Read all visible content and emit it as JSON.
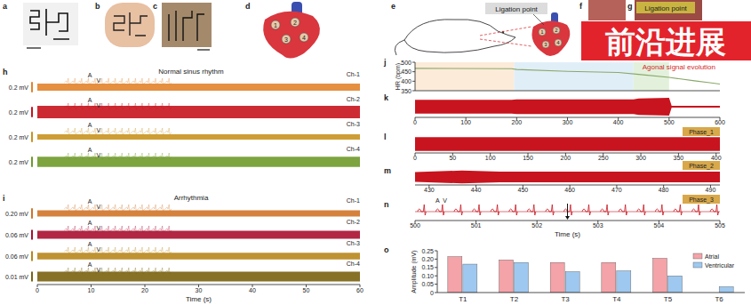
{
  "badge": "前沿进展",
  "illustrations": [
    {
      "panel": "a"
    },
    {
      "panel": "b"
    },
    {
      "panel": "c"
    },
    {
      "panel": "d",
      "electrodes": [
        "1",
        "2",
        "3",
        "4"
      ]
    },
    {
      "panel": "e",
      "annotation": "Ligation point",
      "electrodes": [
        "1",
        "2",
        "3",
        "4"
      ]
    },
    {
      "panel": "f"
    },
    {
      "panel": "g",
      "annotation": "Ligation point"
    }
  ],
  "chart_data": [
    {
      "panel": "h",
      "type": "trace_stack",
      "title": "Normal sinus rhythm",
      "xlim": [
        0,
        60
      ],
      "inset": {
        "x": [
          5,
          25
        ],
        "labels": [
          "A",
          "V"
        ]
      },
      "series": [
        {
          "name": "Ch-1",
          "color": "#e2832c",
          "ylim": [
            -0.19,
            0.19
          ],
          "scale_bar": {
            "value": 0.2,
            "label": "0.2 mV"
          },
          "x": [
            0,
            60
          ],
          "values": [
            0.07,
            0.07
          ]
        },
        {
          "name": "Ch-2",
          "color": "#c8141e",
          "ylim": [
            -0.19,
            0.19
          ],
          "scale_bar": {
            "value": 0.2,
            "label": "0.2 mV"
          },
          "x": [
            0,
            60
          ],
          "values": [
            0.12,
            0.12
          ]
        },
        {
          "name": "Ch-3",
          "color": "#c9931f",
          "ylim": [
            -0.19,
            0.19
          ],
          "scale_bar": {
            "value": 0.2,
            "label": "0.2 mV"
          },
          "x": [
            0,
            60
          ],
          "values": [
            0.05,
            0.05
          ]
        },
        {
          "name": "Ch-4",
          "color": "#6f9a2a",
          "ylim": [
            -0.19,
            0.19
          ],
          "scale_bar": {
            "value": 0.2,
            "label": "0.2 mV"
          },
          "x": [
            0,
            60
          ],
          "values": [
            0.1,
            0.1
          ]
        }
      ]
    },
    {
      "panel": "i",
      "type": "trace_stack",
      "title": "Arrhythmia",
      "xlim": [
        0,
        60
      ],
      "xticks": [
        0,
        10,
        20,
        30,
        40,
        50,
        60
      ],
      "xlabel": "Time (s)",
      "inset": {
        "x": [
          5,
          25
        ],
        "labels": [
          "A",
          "V"
        ]
      },
      "series": [
        {
          "name": "Ch-1",
          "color": "#d07428",
          "ylim": [
            -0.19,
            0.19
          ],
          "scale_bar": {
            "value": 0.2,
            "label": "0.20 mV"
          },
          "x": [
            0,
            60
          ],
          "values": [
            0.06,
            0.06
          ]
        },
        {
          "name": "Ch-2",
          "color": "#a81030",
          "ylim": [
            -0.06,
            0.06
          ],
          "scale_bar": {
            "value": 0.06,
            "label": "0.06 mV"
          },
          "x": [
            0,
            60
          ],
          "values": [
            0.025,
            0.025
          ]
        },
        {
          "name": "Ch-3",
          "color": "#b8861c",
          "ylim": [
            -0.06,
            0.06
          ],
          "scale_bar": {
            "value": 0.06,
            "label": "0.06 mV"
          },
          "x": [
            0,
            60
          ],
          "values": [
            0.02,
            0.02
          ]
        },
        {
          "name": "Ch-4",
          "color": "#7a6210",
          "ylim": [
            -0.01,
            0.01
          ],
          "scale_bar": {
            "value": 0.01,
            "label": "0.01 mV"
          },
          "x": [
            0,
            60
          ],
          "values": [
            0.005,
            0.005
          ]
        }
      ]
    },
    {
      "panel": "j",
      "type": "line",
      "ylabel": "HR (bpm)",
      "annotation": "Agonal signal evolution",
      "xlim": [
        0,
        600
      ],
      "ylim": [
        350,
        500
      ],
      "yticks": [
        350,
        400,
        450,
        500
      ],
      "color": "#8aa86a",
      "phases": [
        {
          "x": [
            0,
            195
          ],
          "color": "#fcebd9"
        },
        {
          "x": [
            195,
            430
          ],
          "color": "#e0eef8"
        },
        {
          "x": [
            430,
            500
          ],
          "color": "#e3f1dc"
        }
      ],
      "x": [
        0,
        190,
        200,
        300,
        400,
        440,
        500,
        550,
        580,
        600
      ],
      "values": [
        468,
        466,
        462,
        452,
        446,
        436,
        420,
        402,
        392,
        385
      ]
    },
    {
      "panel": "k",
      "type": "band",
      "xlim": [
        0,
        600
      ],
      "xticks": [
        0,
        100,
        200,
        300,
        400,
        500,
        600
      ],
      "ylim": [
        -1,
        1
      ],
      "color": "#c8141e",
      "x": [
        0,
        190,
        200,
        430,
        440,
        500,
        505,
        600
      ],
      "values": [
        0.7,
        0.7,
        0.75,
        0.75,
        0.85,
        0.9,
        0.1,
        0.1
      ]
    },
    {
      "panel": "l",
      "type": "band",
      "label": "Phase_1",
      "xlim": [
        0,
        405
      ],
      "xticks": [
        0,
        50,
        100,
        150,
        200,
        250,
        300,
        350,
        400
      ],
      "ylim": [
        -1,
        1
      ],
      "color": "#c8141e",
      "x": [
        0,
        405
      ],
      "values": [
        0.85,
        0.85
      ]
    },
    {
      "panel": "m",
      "type": "band",
      "label": "Phase_2",
      "xlim": [
        427,
        492
      ],
      "xticks": [
        430,
        440,
        450,
        460,
        470,
        480,
        490
      ],
      "ylim": [
        -1,
        1
      ],
      "color": "#c8141e",
      "x": [
        427,
        437,
        445,
        492
      ],
      "values": [
        0.7,
        0.9,
        0.75,
        0.75
      ]
    },
    {
      "panel": "n",
      "type": "ecg",
      "label": "Phase_3",
      "xlim": [
        500,
        505
      ],
      "xticks": [
        500,
        501,
        502,
        503,
        504,
        505
      ],
      "xlabel": "Time (s)",
      "color": "#c8141e",
      "beats": [
        500.15,
        500.45,
        500.75,
        501.05,
        501.35,
        501.65,
        501.95,
        502.25,
        502.55,
        502.85,
        503.15,
        503.45,
        503.75,
        504.05,
        504.35,
        504.65,
        504.95
      ],
      "annotations": [
        {
          "text": "A",
          "x": 500.37
        },
        {
          "text": "V",
          "x": 500.49
        }
      ],
      "marker_x": 502.5
    },
    {
      "panel": "o",
      "type": "bar",
      "ylabel": "Amplitude (mV)",
      "categories": [
        "T1",
        "T2",
        "T3",
        "T4",
        "T5",
        "T6"
      ],
      "ylim": [
        0,
        0.25
      ],
      "yticks": [
        0,
        0.05,
        {
          "value": 0.1,
          "label": "0.10"
        },
        0.15,
        {
          "value": 0.2,
          "label": "0.20"
        },
        0.25
      ],
      "legend": "top-right",
      "series": [
        {
          "name": "Atrial",
          "color": "#f4a3a8",
          "values": [
            0.215,
            0.195,
            0.18,
            0.18,
            0.205,
            null
          ]
        },
        {
          "name": "Ventricular",
          "color": "#9ec8ef",
          "values": [
            0.17,
            0.18,
            0.125,
            0.13,
            0.1,
            0.035
          ]
        }
      ]
    }
  ]
}
